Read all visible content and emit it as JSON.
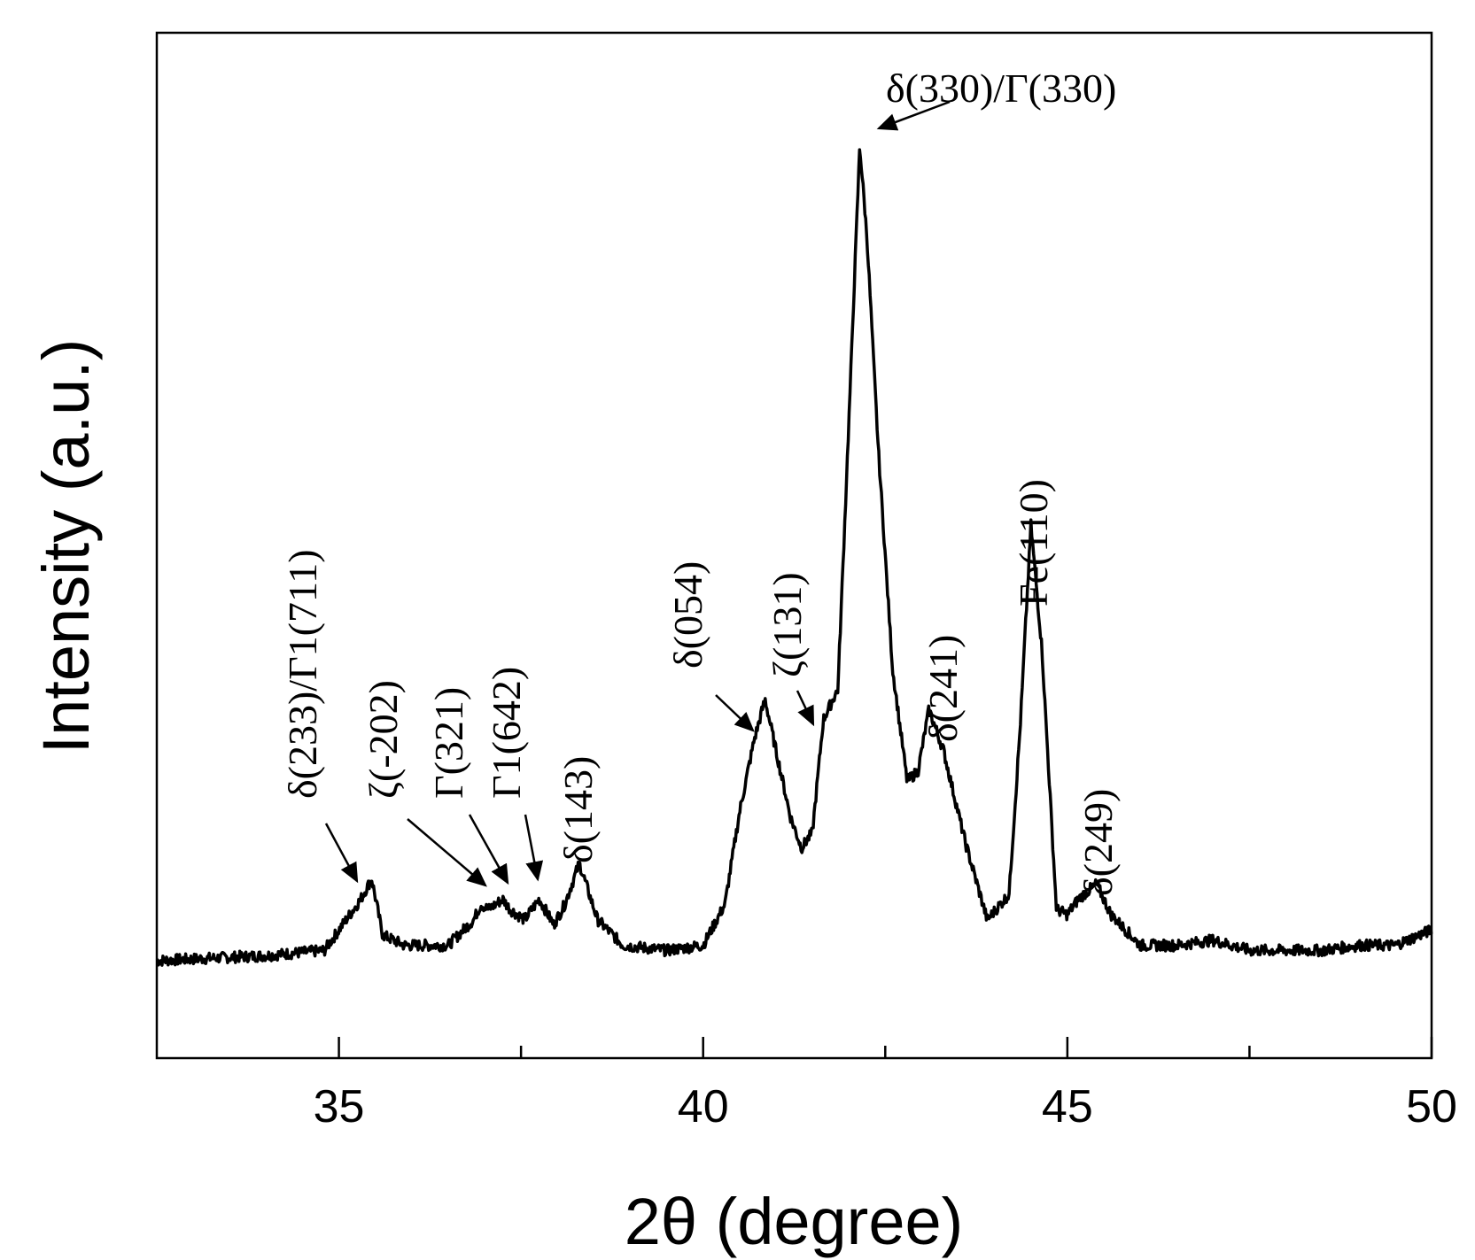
{
  "chart_data": {
    "type": "line",
    "title": "",
    "xlabel": "2θ (degree)",
    "ylabel": "Intensity (a.u.)",
    "xlim": [
      32.5,
      50
    ],
    "ylim": [
      0,
      100
    ],
    "x_ticks": [
      35,
      40,
      45,
      50
    ],
    "x_minor_ticks": [
      37.5,
      42.5,
      47.5
    ],
    "y_ticks": [],
    "grid": false,
    "legend": "none",
    "line_color": "#000000",
    "series": [
      {
        "x": [
          32.5,
          34.0,
          34.8,
          35.0,
          35.2,
          35.3,
          35.45,
          35.6,
          35.9,
          36.5,
          36.85,
          36.95,
          37.05,
          37.25,
          37.35,
          37.55,
          37.75,
          37.95,
          38.1,
          38.3,
          38.55,
          38.9,
          39.5,
          40.0,
          40.3,
          40.5,
          40.7,
          40.85,
          41.0,
          41.2,
          41.35,
          41.5,
          41.65,
          41.85,
          42.0,
          42.15,
          42.25,
          42.4,
          42.6,
          42.8,
          42.95,
          43.1,
          43.3,
          43.6,
          43.9,
          44.2,
          44.35,
          44.5,
          44.65,
          44.85,
          45.0,
          45.15,
          45.4,
          45.6,
          46.0,
          46.5,
          47.0,
          47.5,
          48.0,
          48.5,
          49.0,
          49.5,
          50.0
        ],
        "y": [
          9.5,
          10.0,
          10.5,
          12.5,
          14.5,
          15.5,
          17.5,
          12.0,
          11.0,
          11.0,
          13.5,
          15.0,
          14.5,
          15.5,
          14.5,
          13.5,
          15.5,
          13.0,
          15.0,
          19.0,
          13.5,
          11.0,
          10.5,
          11.0,
          15.0,
          24.0,
          31.0,
          35.0,
          30.0,
          23.5,
          20.5,
          22.0,
          33.0,
          36.0,
          62.0,
          89.0,
          80.0,
          60.0,
          38.0,
          27.0,
          28.0,
          34.0,
          30.0,
          21.0,
          13.5,
          16.0,
          32.0,
          52.0,
          40.0,
          14.5,
          14.0,
          15.5,
          17.0,
          14.0,
          11.0,
          11.0,
          11.5,
          10.5,
          10.5,
          10.5,
          11.0,
          11.0,
          12.5
        ]
      }
    ],
    "annotations": [
      {
        "text": "δ(330)/Γ(330)",
        "x": 42.2,
        "y": 89.0
      },
      {
        "text": "δ(233)/Γ1(711)",
        "x": 35.3,
        "y": 17.0
      },
      {
        "text": "ζ(-202)",
        "x": 36.9,
        "y": 16.5
      },
      {
        "text": "Γ(321)",
        "x": 37.25,
        "y": 16.5
      },
      {
        "text": "Γ1(642)",
        "x": 37.6,
        "y": 17.0
      },
      {
        "text": "δ(143)",
        "x": 38.25,
        "y": 19.0
      },
      {
        "text": "δ(054)",
        "x": 40.7,
        "y": 36.0
      },
      {
        "text": "ζ(131)",
        "x": 41.55,
        "y": 36.0
      },
      {
        "text": "δ(241)",
        "x": 43.05,
        "y": 34.0
      },
      {
        "text": "Fe(110)",
        "x": 44.5,
        "y": 52.0
      },
      {
        "text": "δ(249)",
        "x": 45.4,
        "y": 17.0
      }
    ]
  }
}
